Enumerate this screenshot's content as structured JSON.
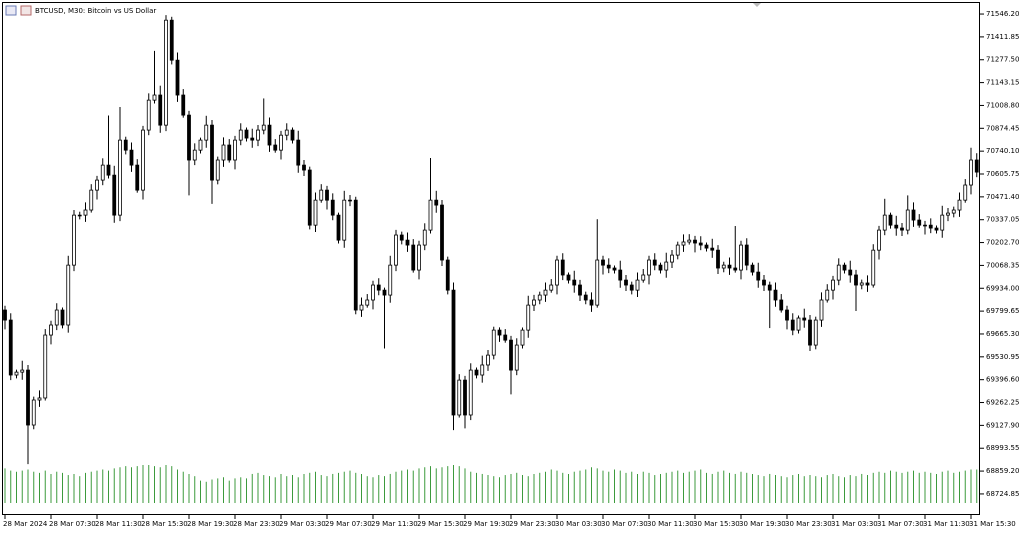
{
  "chart_data": {
    "type": "candlestick",
    "title": "BTCUSD, M30:  Bitcoin vs US Dollar",
    "categories": [
      "28 Mar 2024",
      null,
      null,
      null,
      null,
      null,
      null,
      null,
      "28 Mar 07:30",
      null,
      null,
      null,
      null,
      null,
      null,
      null,
      "28 Mar 11:30",
      null,
      null,
      null,
      null,
      null,
      null,
      null,
      "28 Mar 15:30",
      null,
      null,
      null,
      null,
      null,
      null,
      null,
      "28 Mar 19:30",
      null,
      null,
      null,
      null,
      null,
      null,
      null,
      "28 Mar 23:30",
      null,
      null,
      null,
      null,
      null,
      null,
      null,
      "29 Mar 03:30",
      null,
      null,
      null,
      null,
      null,
      null,
      null,
      "29 Mar 07:30",
      null,
      null,
      null,
      null,
      null,
      null,
      null,
      "29 Mar 11:30",
      null,
      null,
      null,
      null,
      null,
      null,
      null,
      "29 Mar 15:30",
      null,
      null,
      null,
      null,
      null,
      null,
      null,
      "29 Mar 19:30",
      null,
      null,
      null,
      null,
      null,
      null,
      null,
      "29 Mar 23:30",
      null,
      null,
      null,
      null,
      null,
      null,
      null,
      "30 Mar 03:30",
      null,
      null,
      null,
      null,
      null,
      null,
      null,
      "30 Mar 07:30",
      null,
      null,
      null,
      null,
      null,
      null,
      null,
      "30 Mar 11:30",
      null,
      null,
      null,
      null,
      null,
      null,
      null,
      "30 Mar 15:30",
      null,
      null,
      null,
      null,
      null,
      null,
      null,
      "30 Mar 19:30",
      null,
      null,
      null,
      null,
      null,
      null,
      null,
      "30 Mar 23:30",
      null,
      null,
      null,
      null,
      null,
      null,
      null,
      "31 Mar 03:30",
      null,
      null,
      null,
      null,
      null,
      null,
      null,
      "31 Mar 07:30",
      null,
      null,
      null,
      null,
      null,
      null,
      null,
      "31 Mar 11:30",
      null,
      null,
      null,
      null,
      null,
      null,
      null,
      "31 Mar 15:30",
      null
    ],
    "open": [
      69806,
      69747,
      69424,
      69441,
      69453,
      69130,
      69277,
      69289,
      69659,
      69718,
      69806,
      69718,
      70070,
      70364,
      70364,
      70394,
      70511,
      70570,
      70658,
      70599,
      70364,
      70805,
      70746,
      70658,
      70511,
      70864,
      71040,
      71070,
      70893,
      71510,
      71275,
      71070,
      70952,
      70688,
      70746,
      70805,
      70893,
      70570,
      70688,
      70776,
      70688,
      70805,
      70864,
      70817,
      70805,
      70864,
      70893,
      70776,
      70746,
      70834,
      70864,
      70805,
      70658,
      70629,
      70305,
      70452,
      70511,
      70452,
      70364,
      70217,
      70452,
      70452,
      69806,
      69835,
      69865,
      69953,
      69923,
      69894,
      70070,
      70247,
      70217,
      70188,
      70041,
      70188,
      70276,
      70452,
      70423,
      70100,
      69923,
      69189,
      69394,
      69189,
      69453,
      69424,
      69483,
      69541,
      69688,
      69659,
      69629,
      69453,
      69600,
      69688,
      69835,
      69865,
      69894,
      69923,
      69953,
      70100,
      70012,
      69982,
      69953,
      69894,
      69865,
      69835,
      70100,
      70070,
      70053,
      70041,
      69982,
      69953,
      69923,
      69982,
      70012,
      70100,
      70070,
      70041,
      70088,
      70129,
      70188,
      70206,
      70217,
      70200,
      70188,
      70170,
      70158,
      70053,
      70070,
      70053,
      70041,
      70188,
      70070,
      70029,
      69982,
      69953,
      69923,
      69865,
      69806,
      69747,
      69688,
      69759,
      69747,
      69600,
      69747,
      69865,
      69923,
      69982,
      70070,
      70041,
      70012,
      69953,
      69965,
      69953,
      70158,
      70276,
      70364,
      70305,
      70288,
      70276,
      70394,
      70335,
      70305,
      70305,
      70288,
      70276,
      70364,
      70376,
      70394,
      70452,
      70541,
      70688
    ],
    "high": [
      69831,
      69787,
      69456,
      69508,
      69483,
      69297,
      69334,
      69694,
      69743,
      69846,
      69821,
      70125,
      70394,
      70384,
      70439,
      70546,
      70595,
      70698,
      70950,
      70654,
      71000,
      70825,
      70791,
      70693,
      70889,
      71080,
      71330,
      71125,
      71540,
      71530,
      71320,
      71105,
      70977,
      70786,
      70820,
      70948,
      70923,
      70708,
      70821,
      70811,
      70830,
      70904,
      70879,
      70872,
      70894,
      71050,
      70938,
      70811,
      70859,
      70904,
      70879,
      70860,
      70688,
      70649,
      70497,
      70546,
      70536,
      70492,
      70379,
      70507,
      70482,
      70472,
      69880,
      69900,
      69978,
      69993,
      69938,
      70125,
      70277,
      70267,
      70262,
      70223,
      70213,
      70316,
      70700,
      70507,
      70453,
      70120,
      69968,
      69429,
      69419,
      69493,
      69468,
      69538,
      69571,
      69708,
      69704,
      69694,
      69654,
      69640,
      69703,
      69890,
      69895,
      69914,
      69968,
      69988,
      70125,
      70140,
      70027,
      70037,
      69983,
      69914,
      69910,
      70340,
      70125,
      70110,
      70068,
      70096,
      70012,
      69973,
      70027,
      70047,
      70125,
      70140,
      70085,
      70143,
      70159,
      70208,
      70251,
      70252,
      70242,
      70240,
      70203,
      70225,
      70188,
      70090,
      70115,
      70300,
      70213,
      70228,
      70085,
      70084,
      70012,
      69973,
      69968,
      69900,
      69831,
      69787,
      69774,
      69814,
      69777,
      69767,
      69910,
      69958,
      70007,
      70110,
      70085,
      70096,
      70042,
      69985,
      70010,
      70193,
      70301,
      70460,
      70379,
      70360,
      70318,
      70480,
      70439,
      70370,
      70330,
      70345,
      70303,
      70419,
      70406,
      70414,
      70497,
      70576,
      70760,
      70728
    ],
    "low": [
      69692,
      69394,
      69404,
      69396,
      68900,
      69105,
      69237,
      69274,
      69604,
      69688,
      69698,
      69673,
      70035,
      70339,
      70324,
      70379,
      70456,
      70540,
      70579,
      70319,
      70329,
      70721,
      70618,
      70496,
      70456,
      70834,
      71020,
      70848,
      70858,
      71250,
      71030,
      70937,
      70480,
      70658,
      70726,
      70760,
      70430,
      70545,
      70648,
      70673,
      70633,
      70775,
      70797,
      70760,
      70770,
      70839,
      70736,
      70731,
      70691,
      70804,
      70785,
      70613,
      70594,
      70280,
      70265,
      70437,
      70397,
      70334,
      70197,
      70172,
      70417,
      69781,
      69766,
      69820,
      69810,
      69893,
      69580,
      69849,
      70035,
      70192,
      70148,
      70026,
      69986,
      70158,
      70256,
      70378,
      70065,
      69898,
      69100,
      69174,
      69110,
      69159,
      69404,
      69379,
      69448,
      69516,
      69619,
      69614,
      69310,
      69423,
      69580,
      69643,
      69800,
      69840,
      69854,
      69908,
      69898,
      69982,
      69962,
      69908,
      69859,
      69840,
      69795,
      69820,
      70015,
      70023,
      70021,
      69937,
      69918,
      69898,
      69883,
      69967,
      69957,
      70040,
      70021,
      69996,
      70053,
      70104,
      70148,
      70191,
      70145,
      70158,
      70150,
      70113,
      70018,
      70028,
      70013,
      70026,
      69986,
      70040,
      70009,
      69937,
      69918,
      69700,
      69825,
      69791,
      69692,
      69658,
      69668,
      69702,
      69565,
      69575,
      69707,
      69850,
      69868,
      69952,
      70021,
      69967,
      69800,
      69928,
      69913,
      69938,
      70103,
      70246,
      70285,
      70243,
      70241,
      70251,
      70295,
      70290,
      70250,
      70258,
      70256,
      70231,
      70329,
      70351,
      70354,
      70437,
      70486,
      70587
    ],
    "close": [
      69747,
      69424,
      69441,
      69453,
      69130,
      69277,
      69289,
      69659,
      69718,
      69806,
      69718,
      70070,
      70364,
      70364,
      70394,
      70511,
      70570,
      70658,
      70599,
      70364,
      70805,
      70746,
      70658,
      70511,
      70864,
      71040,
      71070,
      70893,
      71510,
      71275,
      71070,
      70952,
      70688,
      70746,
      70805,
      70893,
      70570,
      70688,
      70776,
      70688,
      70805,
      70864,
      70817,
      70805,
      70864,
      70893,
      70776,
      70746,
      70834,
      70864,
      70805,
      70658,
      70629,
      70305,
      70452,
      70511,
      70452,
      70364,
      70217,
      70452,
      70452,
      69806,
      69835,
      69865,
      69953,
      69923,
      69894,
      70070,
      70247,
      70217,
      70188,
      70041,
      70188,
      70276,
      70452,
      70423,
      70100,
      69923,
      69189,
      69394,
      69189,
      69453,
      69424,
      69483,
      69541,
      69688,
      69659,
      69629,
      69453,
      69600,
      69688,
      69835,
      69865,
      69894,
      69923,
      69953,
      70100,
      70012,
      69982,
      69953,
      69894,
      69865,
      69835,
      70100,
      70070,
      70053,
      70041,
      69982,
      69953,
      69923,
      69982,
      70012,
      70100,
      70070,
      70041,
      70088,
      70129,
      70188,
      70206,
      70217,
      70200,
      70188,
      70170,
      70158,
      70053,
      70070,
      70053,
      70041,
      70188,
      70070,
      70029,
      69982,
      69953,
      69923,
      69865,
      69806,
      69747,
      69688,
      69759,
      69747,
      69600,
      69747,
      69865,
      69923,
      69982,
      70070,
      70041,
      70012,
      69953,
      69965,
      69953,
      70158,
      70276,
      70364,
      70305,
      70288,
      70276,
      70394,
      70335,
      70305,
      70305,
      70288,
      70276,
      70364,
      70376,
      70394,
      70452,
      70541,
      70688,
      70617
    ],
    "volume": [
      3100,
      2900,
      2800,
      2900,
      3000,
      2800,
      2700,
      2900,
      2600,
      2800,
      2700,
      2500,
      2600,
      2400,
      2700,
      2800,
      2900,
      3000,
      2900,
      3100,
      3200,
      3300,
      3200,
      3300,
      3400,
      3400,
      3300,
      3200,
      3400,
      3300,
      3000,
      2800,
      2600,
      2400,
      2000,
      1900,
      2100,
      2200,
      2300,
      2000,
      2200,
      2300,
      2200,
      2600,
      2700,
      2500,
      2400,
      2300,
      2600,
      2400,
      2500,
      2300,
      2600,
      2700,
      2800,
      2500,
      2400,
      2600,
      2700,
      2800,
      2900,
      2700,
      2600,
      2400,
      2300,
      2500,
      2400,
      2600,
      2800,
      2900,
      3000,
      2900,
      3100,
      3200,
      3300,
      3100,
      3200,
      3300,
      3400,
      3300,
      3100,
      2800,
      2700,
      2600,
      2500,
      2400,
      2300,
      2500,
      2600,
      2700,
      2500,
      2400,
      2600,
      2700,
      2800,
      3000,
      2900,
      2700,
      2600,
      2800,
      2900,
      3000,
      3200,
      3100,
      2900,
      2800,
      3000,
      2900,
      2700,
      2800,
      2600,
      2800,
      2700,
      2500,
      2600,
      2700,
      2800,
      2900,
      2700,
      2800,
      2900,
      3000,
      2700,
      2600,
      2800,
      2900,
      2700,
      2600,
      2800,
      2700,
      2600,
      2500,
      2400,
      2600,
      2500,
      2400,
      2300,
      2500,
      2600,
      2400,
      2500,
      2400,
      2300,
      2500,
      2600,
      2400,
      2300,
      2500,
      2400,
      2600,
      2500,
      2700,
      2800,
      2700,
      2900,
      2800,
      2700,
      2800,
      2900,
      2700,
      2800,
      2700,
      2600,
      2800,
      2900,
      2700,
      2800,
      2900,
      3000,
      3000
    ],
    "ylim": [
      68601,
      71617
    ],
    "yticks": [
      {
        "value": 71546.2,
        "label": "71546.20"
      },
      71411.85,
      {
        "value": 71277.5,
        "label": "71277.50"
      },
      71143.15,
      {
        "value": 71008.8,
        "label": "71008.80"
      },
      70874.45,
      {
        "value": 70740.1,
        "label": "70740.10"
      },
      70605.75,
      {
        "value": 70471.4,
        "label": "70471.40"
      },
      70337.05,
      {
        "value": 70202.7,
        "label": "70202.70"
      },
      70068.35,
      {
        "value": 69934,
        "label": "69934.00"
      },
      69799.65,
      {
        "value": 69665.3,
        "label": "69665.30"
      },
      69530.95,
      {
        "value": 69396.6,
        "label": "69396.60"
      },
      69262.25,
      {
        "value": 69127.9,
        "label": "69127.90"
      },
      68993.55,
      {
        "value": 68859.2,
        "label": "68859.20"
      },
      68724.85
    ],
    "up_color": "#ffffff",
    "down_color": "#000000",
    "outline_color": "#000000",
    "volume_color": "#3c9a3c"
  }
}
